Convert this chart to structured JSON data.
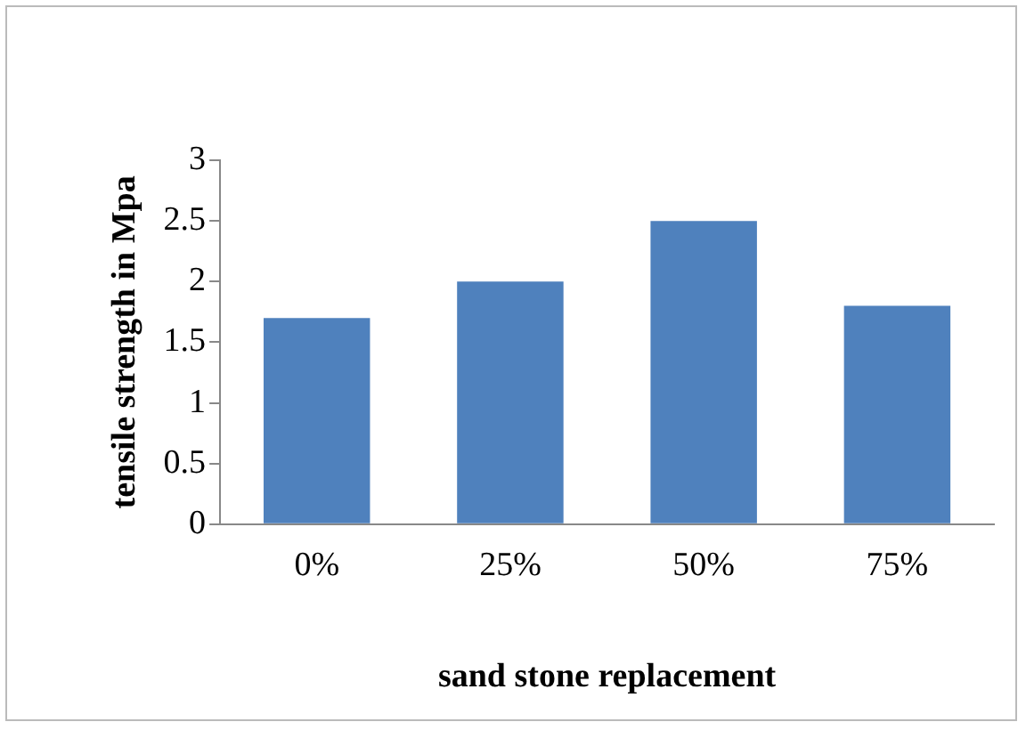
{
  "chart_data": {
    "type": "bar",
    "xlabel": "sand stone replacement",
    "ylabel": "tensile strength in Mpa",
    "categories": [
      "0%",
      "25%",
      "50%",
      "75%"
    ],
    "values": [
      1.7,
      2.0,
      2.5,
      1.8
    ],
    "color": "#4f81bd",
    "ylim": [
      0,
      3
    ],
    "yticks": [
      0,
      0.5,
      1,
      1.5,
      2,
      2.5,
      3
    ],
    "grid": false,
    "legend": false
  }
}
